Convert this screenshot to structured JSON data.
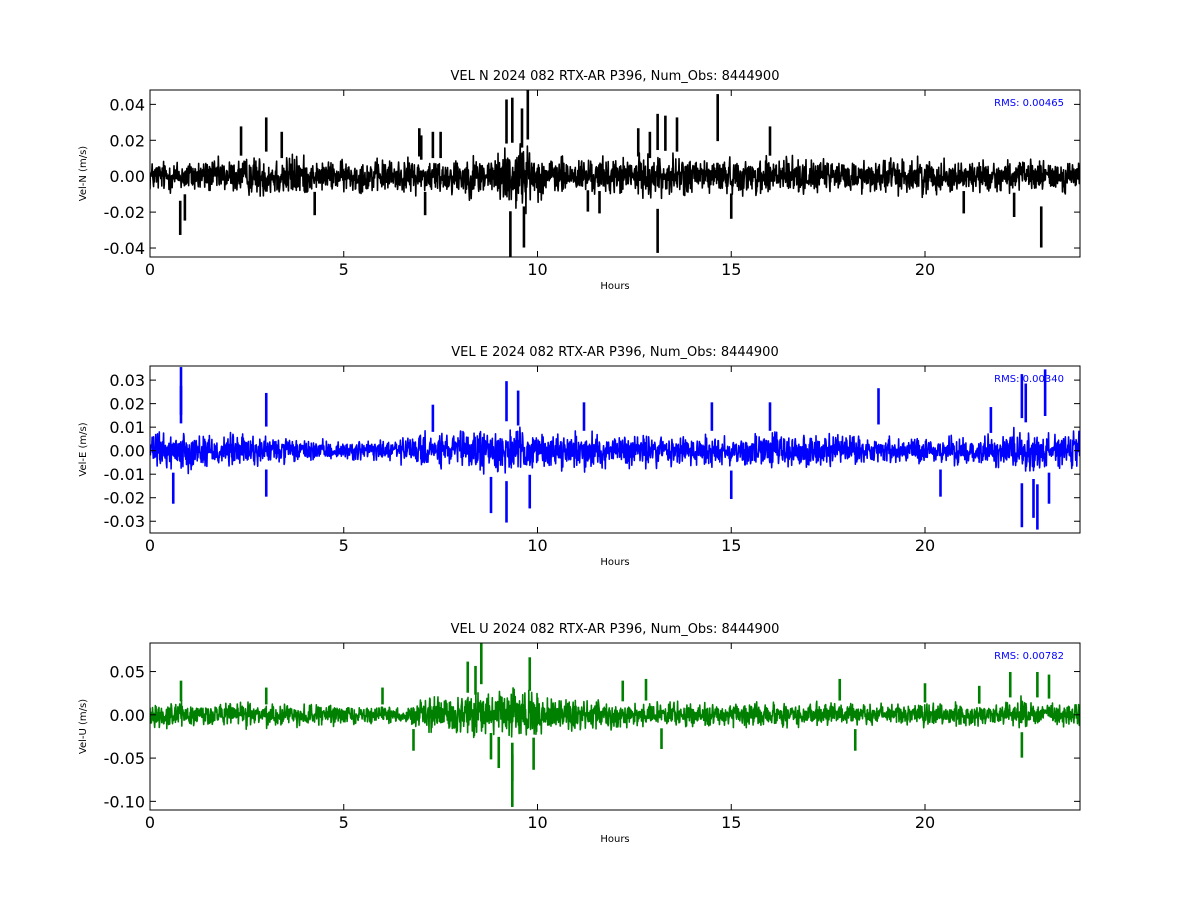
{
  "chart_data": [
    {
      "type": "line",
      "title": "VEL N 2024 082 RTX-AR  P396, Num_Obs: 8444900",
      "xlabel": "Hours",
      "ylabel": "Vel-N (m/s)",
      "xlim": [
        0,
        24
      ],
      "ylim": [
        -0.045,
        0.048
      ],
      "xticks": [
        "0",
        "5",
        "10",
        "15",
        "20"
      ],
      "yticks": [
        "0.04",
        "0.02",
        "0.00",
        "-0.02",
        "-0.04"
      ],
      "color": "#000000",
      "annotation": "RMS:  0.00465",
      "annotation_color": "#0000ff",
      "envelope": {
        "hours": [
          0,
          1,
          2,
          3,
          3.8,
          4.2,
          5,
          6,
          7,
          8,
          9,
          9.2,
          9.5,
          9.8,
          10.2,
          11,
          12,
          13,
          14,
          15,
          15.6,
          15.9,
          16.5,
          17,
          18,
          19,
          20,
          21,
          22,
          23,
          24
        ],
        "upper": [
          0.012,
          0.013,
          0.013,
          0.016,
          0.018,
          0.011,
          0.012,
          0.013,
          0.013,
          0.015,
          0.017,
          0.026,
          0.03,
          0.02,
          0.015,
          0.014,
          0.014,
          0.016,
          0.015,
          0.013,
          0.013,
          0.018,
          0.016,
          0.012,
          0.012,
          0.014,
          0.014,
          0.012,
          0.012,
          0.012,
          0.012
        ],
        "lower": [
          -0.012,
          -0.013,
          -0.013,
          -0.016,
          -0.018,
          -0.011,
          -0.012,
          -0.013,
          -0.013,
          -0.015,
          -0.017,
          -0.026,
          -0.03,
          -0.02,
          -0.015,
          -0.014,
          -0.014,
          -0.016,
          -0.015,
          -0.013,
          -0.013,
          -0.018,
          -0.016,
          -0.012,
          -0.012,
          -0.014,
          -0.014,
          -0.012,
          -0.012,
          -0.012,
          -0.012
        ]
      },
      "spikes": [
        [
          0.78,
          -0.032
        ],
        [
          0.9,
          -0.024
        ],
        [
          2.35,
          0.027
        ],
        [
          3.0,
          0.032
        ],
        [
          3.4,
          0.024
        ],
        [
          4.25,
          -0.021
        ],
        [
          7.1,
          -0.021
        ],
        [
          7.0,
          0.022
        ],
        [
          7.3,
          0.024
        ],
        [
          7.5,
          0.024
        ],
        [
          6.95,
          0.026
        ],
        [
          9.2,
          0.042
        ],
        [
          9.35,
          0.043
        ],
        [
          9.6,
          0.037
        ],
        [
          9.75,
          0.047
        ],
        [
          9.3,
          -0.045
        ],
        [
          9.65,
          -0.039
        ],
        [
          11.3,
          -0.019
        ],
        [
          11.6,
          -0.02
        ],
        [
          12.6,
          0.026
        ],
        [
          12.9,
          0.024
        ],
        [
          13.1,
          0.034
        ],
        [
          13.1,
          -0.042
        ],
        [
          13.3,
          0.033
        ],
        [
          14.65,
          0.045
        ],
        [
          15.0,
          -0.023
        ],
        [
          16.0,
          0.027
        ],
        [
          21.0,
          -0.02
        ],
        [
          22.3,
          -0.022
        ],
        [
          23.0,
          -0.039
        ],
        [
          13.6,
          0.032
        ]
      ]
    },
    {
      "type": "line",
      "title": "VEL E 2024 082 RTX-AR  P396, Num_Obs: 8444900",
      "xlabel": "Hours",
      "ylabel": "Vel-E (m/s)",
      "xlim": [
        0,
        24
      ],
      "ylim": [
        -0.035,
        0.036
      ],
      "xticks": [
        "0",
        "5",
        "10",
        "15",
        "20"
      ],
      "yticks": [
        "0.03",
        "0.02",
        "0.01",
        "0.00",
        "-0.01",
        "-0.02",
        "-0.03"
      ],
      "color": "#0000ff",
      "annotation": "RMS:  0.00340",
      "annotation_color": "#0000ff",
      "envelope": {
        "hours": [
          0,
          1,
          2,
          3,
          4,
          5,
          6,
          7,
          8,
          9,
          9.5,
          10,
          11,
          12,
          13,
          14,
          15,
          15.7,
          16,
          17,
          18,
          19,
          20,
          21,
          22,
          22.5,
          23,
          24
        ],
        "upper": [
          0.01,
          0.011,
          0.01,
          0.009,
          0.006,
          0.005,
          0.007,
          0.009,
          0.011,
          0.013,
          0.012,
          0.01,
          0.01,
          0.01,
          0.01,
          0.01,
          0.01,
          0.01,
          0.011,
          0.01,
          0.009,
          0.008,
          0.007,
          0.008,
          0.009,
          0.012,
          0.011,
          0.011
        ],
        "lower": [
          -0.01,
          -0.011,
          -0.01,
          -0.009,
          -0.006,
          -0.005,
          -0.007,
          -0.009,
          -0.011,
          -0.013,
          -0.012,
          -0.01,
          -0.01,
          -0.01,
          -0.01,
          -0.01,
          -0.01,
          -0.01,
          -0.011,
          -0.01,
          -0.009,
          -0.008,
          -0.007,
          -0.008,
          -0.009,
          -0.012,
          -0.011,
          -0.011
        ]
      },
      "spikes": [
        [
          0.8,
          0.035
        ],
        [
          0.8,
          0.027
        ],
        [
          0.6,
          -0.022
        ],
        [
          3.0,
          0.024
        ],
        [
          3.0,
          -0.019
        ],
        [
          7.3,
          0.019
        ],
        [
          8.8,
          -0.026
        ],
        [
          9.2,
          0.029
        ],
        [
          9.5,
          0.025
        ],
        [
          9.2,
          -0.03
        ],
        [
          9.8,
          -0.024
        ],
        [
          11.2,
          0.02
        ],
        [
          14.5,
          0.02
        ],
        [
          15.0,
          -0.02
        ],
        [
          16.0,
          0.02
        ],
        [
          18.8,
          0.026
        ],
        [
          20.4,
          -0.019
        ],
        [
          21.7,
          0.018
        ],
        [
          22.5,
          -0.032
        ],
        [
          22.5,
          0.032
        ],
        [
          22.6,
          0.028
        ],
        [
          22.8,
          -0.028
        ],
        [
          22.9,
          -0.033
        ],
        [
          23.1,
          0.034
        ],
        [
          23.2,
          -0.022
        ]
      ]
    },
    {
      "type": "line",
      "title": "VEL U 2024 082 RTX-AR  P396, Num_Obs: 8444900",
      "xlabel": "Hours",
      "ylabel": "Vel-U (m/s)",
      "xlim": [
        0,
        24
      ],
      "ylim": [
        -0.11,
        0.083
      ],
      "xticks": [
        "0",
        "5",
        "10",
        "15",
        "20"
      ],
      "yticks": [
        "0.05",
        "0.00",
        "-0.05",
        "-0.10"
      ],
      "color": "#008000",
      "annotation": "RMS:  0.00782",
      "annotation_color": "#0000ff",
      "envelope": {
        "hours": [
          0,
          1,
          2,
          3,
          4,
          5,
          6,
          6.6,
          7,
          8,
          8.5,
          9,
          9.5,
          10,
          11,
          12,
          13,
          14,
          15,
          16,
          17,
          18,
          19,
          20,
          21,
          22,
          22.5,
          23,
          24
        ],
        "upper": [
          0.018,
          0.02,
          0.018,
          0.019,
          0.017,
          0.014,
          0.012,
          0.012,
          0.028,
          0.03,
          0.034,
          0.035,
          0.04,
          0.03,
          0.025,
          0.02,
          0.018,
          0.019,
          0.018,
          0.018,
          0.018,
          0.017,
          0.018,
          0.018,
          0.017,
          0.015,
          0.025,
          0.02,
          0.02
        ],
        "lower": [
          -0.018,
          -0.02,
          -0.018,
          -0.019,
          -0.017,
          -0.014,
          -0.012,
          -0.012,
          -0.028,
          -0.03,
          -0.034,
          -0.035,
          -0.04,
          -0.03,
          -0.025,
          -0.02,
          -0.018,
          -0.019,
          -0.018,
          -0.018,
          -0.018,
          -0.017,
          -0.018,
          -0.018,
          -0.017,
          -0.015,
          -0.025,
          -0.02,
          -0.02
        ]
      },
      "spikes": [
        [
          0.8,
          0.038
        ],
        [
          3.0,
          0.03
        ],
        [
          6.0,
          0.03
        ],
        [
          6.8,
          -0.04
        ],
        [
          8.2,
          0.06
        ],
        [
          8.4,
          0.055
        ],
        [
          8.55,
          0.082
        ],
        [
          8.8,
          -0.05
        ],
        [
          9.0,
          -0.06
        ],
        [
          9.35,
          -0.075
        ],
        [
          9.35,
          -0.105
        ],
        [
          9.8,
          0.065
        ],
        [
          9.9,
          -0.062
        ],
        [
          12.2,
          0.038
        ],
        [
          12.8,
          0.04
        ],
        [
          13.2,
          -0.038
        ],
        [
          17.8,
          0.04
        ],
        [
          18.2,
          -0.04
        ],
        [
          20.0,
          0.035
        ],
        [
          21.4,
          0.032
        ],
        [
          22.2,
          0.048
        ],
        [
          22.5,
          -0.048
        ],
        [
          22.9,
          0.048
        ],
        [
          23.2,
          0.045
        ]
      ]
    }
  ]
}
